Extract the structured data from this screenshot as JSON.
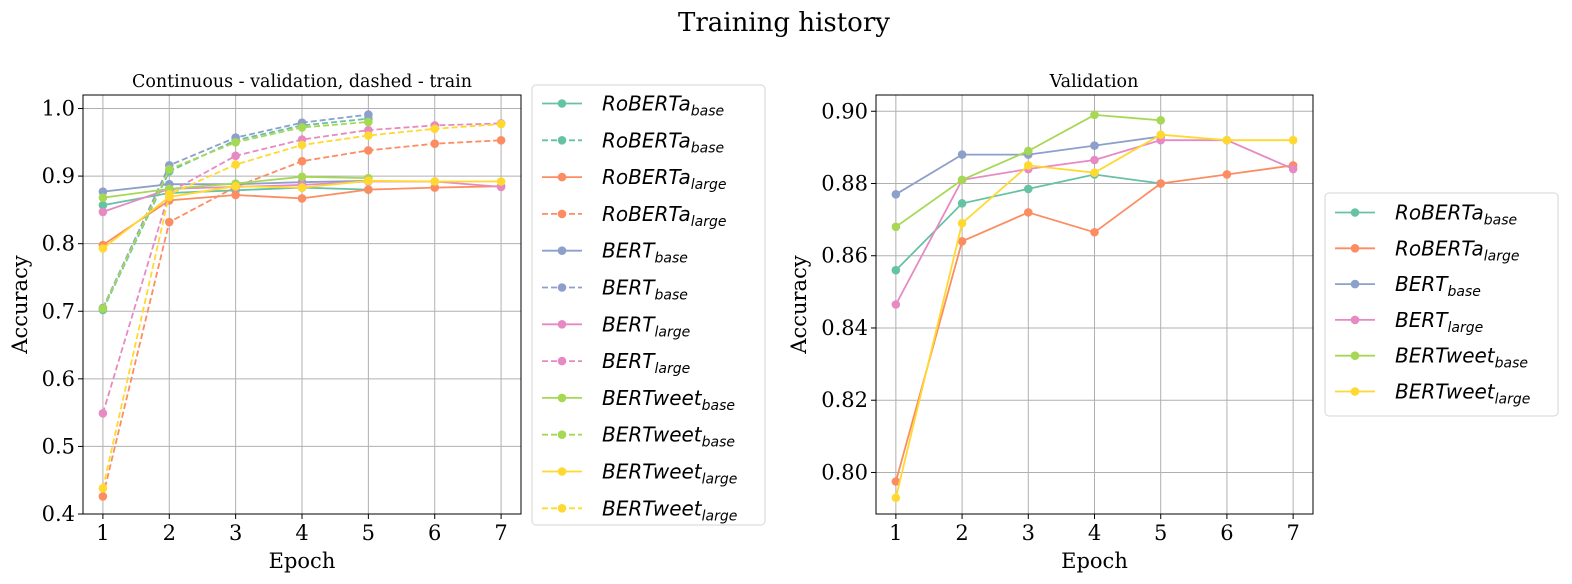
{
  "figure_title": "Training history",
  "chart_data": [
    {
      "type": "line",
      "title": "Continuous - validation, dashed - train",
      "xlabel": "Epoch",
      "ylabel": "Accuracy",
      "x": [
        1,
        2,
        3,
        4,
        5,
        6,
        7
      ],
      "xticks": [
        "1",
        "2",
        "3",
        "4",
        "5",
        "6",
        "7"
      ],
      "yticks": [
        "0.4",
        "0.5",
        "0.6",
        "0.7",
        "0.8",
        "0.9",
        "1.0"
      ],
      "ylim": [
        0.4,
        1.02
      ],
      "grid": true,
      "legend_position": "outside-right",
      "series": [
        {
          "base": "RoBERTa",
          "sub": "base",
          "color": "#66c2a5",
          "dash": false,
          "values": [
            0.857,
            0.875,
            0.879,
            0.883,
            0.88,
            null,
            null
          ]
        },
        {
          "base": "RoBERTa",
          "sub": "base",
          "color": "#66c2a5",
          "dash": true,
          "values": [
            0.702,
            0.907,
            0.953,
            0.975,
            0.985,
            null,
            null
          ]
        },
        {
          "base": "RoBERTa",
          "sub": "large",
          "color": "#fc8d62",
          "dash": false,
          "values": [
            0.798,
            0.864,
            0.872,
            0.867,
            0.88,
            0.883,
            0.885
          ]
        },
        {
          "base": "RoBERTa",
          "sub": "large",
          "color": "#fc8d62",
          "dash": true,
          "values": [
            0.426,
            0.832,
            0.884,
            0.922,
            0.938,
            0.948,
            0.953
          ]
        },
        {
          "base": "BERT",
          "sub": "base",
          "color": "#8da0cb",
          "dash": false,
          "values": [
            0.877,
            0.888,
            0.888,
            0.891,
            0.893,
            null,
            null
          ]
        },
        {
          "base": "BERT",
          "sub": "base",
          "color": "#8da0cb",
          "dash": true,
          "values": [
            0.705,
            0.916,
            0.957,
            0.979,
            0.991,
            null,
            null
          ]
        },
        {
          "base": "BERT",
          "sub": "large",
          "color": "#e78ac3",
          "dash": false,
          "values": [
            0.847,
            0.881,
            0.884,
            0.887,
            0.892,
            0.892,
            0.884
          ]
        },
        {
          "base": "BERT",
          "sub": "large",
          "color": "#e78ac3",
          "dash": true,
          "values": [
            0.549,
            0.876,
            0.93,
            0.954,
            0.968,
            0.975,
            0.978
          ]
        },
        {
          "base": "BERTweet",
          "sub": "base",
          "color": "#a6d854",
          "dash": false,
          "values": [
            0.868,
            0.881,
            0.889,
            0.899,
            0.897,
            null,
            null
          ]
        },
        {
          "base": "BERTweet",
          "sub": "base",
          "color": "#a6d854",
          "dash": true,
          "values": [
            0.704,
            0.91,
            0.95,
            0.972,
            0.98,
            null,
            null
          ]
        },
        {
          "base": "BERTweet",
          "sub": "large",
          "color": "#ffd92f",
          "dash": false,
          "values": [
            0.793,
            0.869,
            0.885,
            0.883,
            0.893,
            0.892,
            0.892
          ]
        },
        {
          "base": "BERTweet",
          "sub": "large",
          "color": "#ffd92f",
          "dash": true,
          "values": [
            0.438,
            0.873,
            0.917,
            0.946,
            0.96,
            0.97,
            0.977
          ]
        }
      ]
    },
    {
      "type": "line",
      "title": "Validation",
      "xlabel": "Epoch",
      "ylabel": "Accuracy",
      "x": [
        1,
        2,
        3,
        4,
        5,
        6,
        7
      ],
      "xticks": [
        "1",
        "2",
        "3",
        "4",
        "5",
        "6",
        "7"
      ],
      "yticks": [
        "0.80",
        "0.82",
        "0.84",
        "0.86",
        "0.88",
        "0.90"
      ],
      "ylim": [
        0.7885,
        0.9045
      ],
      "grid": true,
      "legend_position": "outside-right",
      "series": [
        {
          "base": "RoBERTa",
          "sub": "base",
          "color": "#66c2a5",
          "dash": false,
          "values": [
            0.856,
            0.8745,
            0.8785,
            0.8825,
            0.88,
            null,
            null
          ]
        },
        {
          "base": "RoBERTa",
          "sub": "large",
          "color": "#fc8d62",
          "dash": false,
          "values": [
            0.7975,
            0.864,
            0.872,
            0.8665,
            0.88,
            0.8825,
            0.885
          ]
        },
        {
          "base": "BERT",
          "sub": "base",
          "color": "#8da0cb",
          "dash": false,
          "values": [
            0.877,
            0.888,
            0.888,
            0.8905,
            0.893,
            null,
            null
          ]
        },
        {
          "base": "BERT",
          "sub": "large",
          "color": "#e78ac3",
          "dash": false,
          "values": [
            0.8465,
            0.881,
            0.884,
            0.8865,
            0.892,
            0.892,
            0.884
          ]
        },
        {
          "base": "BERTweet",
          "sub": "base",
          "color": "#a6d854",
          "dash": false,
          "values": [
            0.868,
            0.881,
            0.889,
            0.899,
            0.8975,
            null,
            null
          ]
        },
        {
          "base": "BERTweet",
          "sub": "large",
          "color": "#ffd92f",
          "dash": false,
          "values": [
            0.793,
            0.869,
            0.885,
            0.883,
            0.8935,
            0.892,
            0.892
          ]
        }
      ]
    }
  ]
}
